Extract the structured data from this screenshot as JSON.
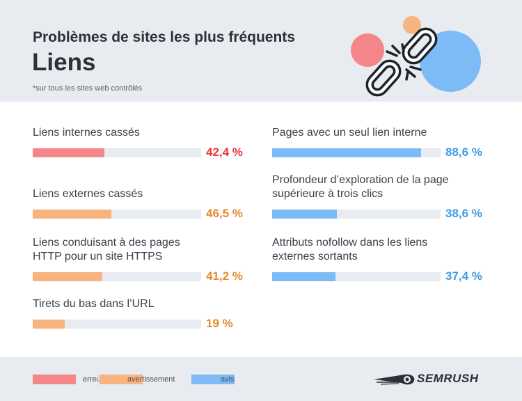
{
  "header": {
    "title": "Problèmes de sites les plus fréquents",
    "subtitle": "Liens",
    "note": "*sur tous les sites web contrôlés"
  },
  "chart_data": {
    "type": "bar",
    "title": "Problèmes de sites les plus fréquents",
    "subtitle": "Liens",
    "xlim": [
      0,
      100
    ],
    "unit": "%",
    "categories": [
      "Liens internes cassés",
      "Liens externes cassés",
      "Liens conduisant à des pages HTTP pour un site HTTPS",
      "Tirets du bas dans l’URL",
      "Pages avec un seul lien interne",
      "Profondeur d’exploration de la page supérieure à trois clics",
      "Attributs nofollow dans les liens externes sortants"
    ],
    "values": [
      42.4,
      46.5,
      41.2,
      19,
      88.6,
      38.6,
      37.4
    ],
    "items": [
      {
        "label_lines": [
          "Liens internes cassés"
        ],
        "value": 42.4,
        "value_label": "42,4 %",
        "level": "erreur"
      },
      {
        "label_lines": [
          "Liens externes cassés"
        ],
        "value": 46.5,
        "value_label": "46,5 %",
        "level": "avertissement"
      },
      {
        "label_lines": [
          "Liens conduisant à des pages",
          "HTTP pour un site HTTPS"
        ],
        "value": 41.2,
        "value_label": "41,2 %",
        "level": "avertissement"
      },
      {
        "label_lines": [
          "Tirets du bas dans l’URL"
        ],
        "value": 19,
        "value_label": "19 %",
        "level": "avertissement"
      },
      {
        "label_lines": [
          "Pages avec un seul lien interne"
        ],
        "value": 88.6,
        "value_label": "88,6 %",
        "level": "avis"
      },
      {
        "label_lines": [
          "Profondeur d’exploration de la page",
          "supérieure à trois clics"
        ],
        "value": 38.6,
        "value_label": "38,6 %",
        "level": "avis"
      },
      {
        "label_lines": [
          "Attributs nofollow dans les liens",
          "externes sortants"
        ],
        "value": 37.4,
        "value_label": "37,4 %",
        "level": "avis"
      }
    ],
    "legend": [
      {
        "key": "erreur",
        "label": "erreur",
        "color": "#f4868a",
        "text_color": "#e8353d"
      },
      {
        "key": "avertissement",
        "label": "avertissement",
        "color": "#f8b47f",
        "text_color": "#e58a2e"
      },
      {
        "key": "avis",
        "label": "avis",
        "color": "#7dbbf6",
        "text_color": "#3d9be6"
      }
    ],
    "legend_position": "bottom-left",
    "grid": false
  },
  "brand": {
    "name": "SEMRUSH"
  },
  "colors": {
    "background_band": "#e8ecf0",
    "track": "#e8ecf0",
    "text_dark": "#2c3138"
  },
  "icons": [
    "broken-chain-icon",
    "semrush-comet-logo"
  ]
}
